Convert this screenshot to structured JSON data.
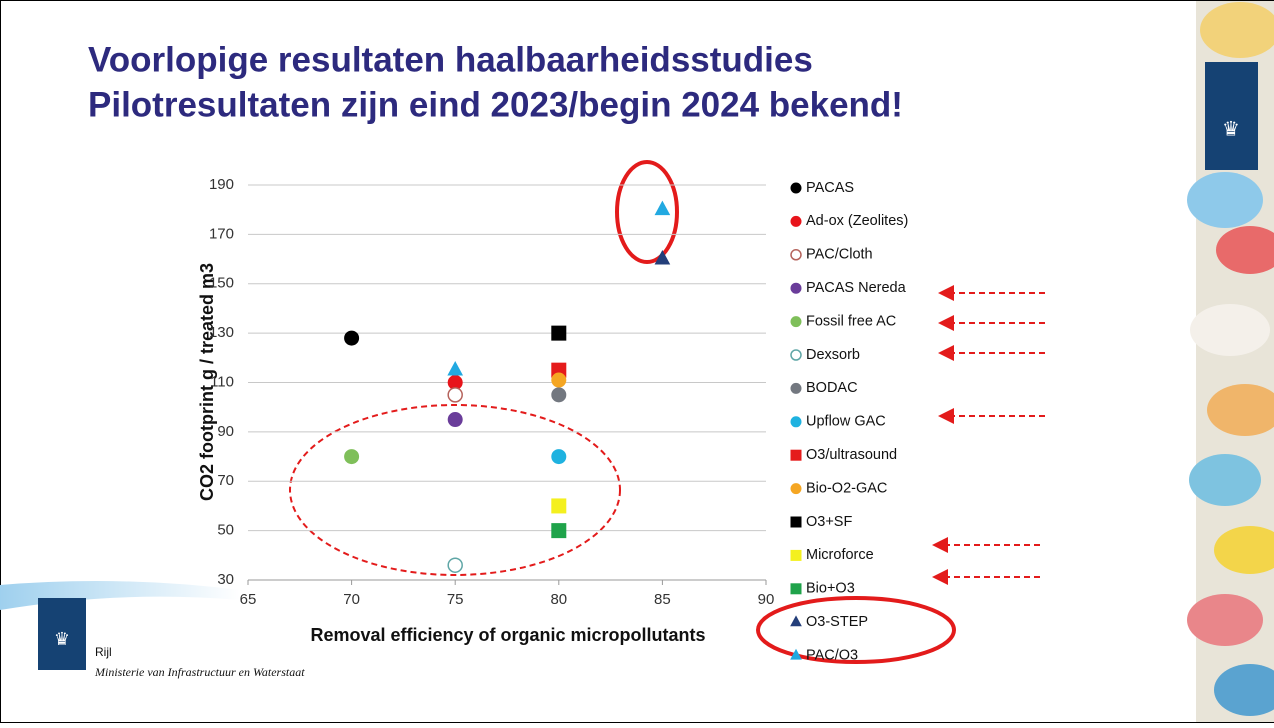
{
  "slide": {
    "title_lines": [
      "Voorlopige resultaten haalbaarheidsstudies",
      "Pilotresultaten zijn eind 2023/begin 2024 bekend!"
    ],
    "footer": {
      "logo_text": "Rijl",
      "ministry": "Ministerie van Infrastructuur en Waterstaat"
    }
  },
  "chart_data": {
    "type": "scatter",
    "x_label": "Removal efficiency of organic micropollutants",
    "y_label": "CO2 footprint g / treated m3",
    "xlim": [
      65,
      90
    ],
    "xticks": [
      65,
      70,
      75,
      80,
      85,
      90
    ],
    "ylim": [
      30,
      190
    ],
    "yticks": [
      30,
      50,
      70,
      90,
      110,
      130,
      150,
      170,
      190
    ],
    "grid": true,
    "legend": "right",
    "series": [
      {
        "name": "PACAS",
        "color": "#000000",
        "marker": "circle",
        "filled": true,
        "x": [
          70
        ],
        "values": [
          128
        ]
      },
      {
        "name": "Ad-ox (Zeolites)",
        "color": "#e8141b",
        "marker": "circle",
        "filled": true,
        "x": [
          75
        ],
        "values": [
          110
        ]
      },
      {
        "name": "PAC/Cloth",
        "color": "#b5635c",
        "marker": "circle",
        "filled": false,
        "x": [
          75
        ],
        "values": [
          105
        ]
      },
      {
        "name": "PACAS Nereda",
        "color": "#6a3d9a",
        "marker": "circle",
        "filled": true,
        "x": [
          75
        ],
        "values": [
          95
        ]
      },
      {
        "name": "Fossil free AC",
        "color": "#7fbf5a",
        "marker": "circle",
        "filled": true,
        "x": [
          70
        ],
        "values": [
          80
        ]
      },
      {
        "name": "Dexsorb",
        "color": "#5fa6a6",
        "marker": "circle",
        "filled": false,
        "x": [
          75
        ],
        "values": [
          36
        ]
      },
      {
        "name": "BODAC",
        "color": "#737880",
        "marker": "circle",
        "filled": true,
        "x": [
          80
        ],
        "values": [
          105
        ]
      },
      {
        "name": "Upflow GAC",
        "color": "#1fb2e0",
        "marker": "circle",
        "filled": true,
        "x": [
          80
        ],
        "values": [
          80
        ]
      },
      {
        "name": "O3/ultrasound",
        "color": "#e51b1b",
        "marker": "square",
        "filled": true,
        "x": [
          80
        ],
        "values": [
          115
        ]
      },
      {
        "name": "Bio-O2-GAC",
        "color": "#f5a623",
        "marker": "circle",
        "filled": true,
        "x": [
          80
        ],
        "values": [
          111
        ]
      },
      {
        "name": "O3+SF",
        "color": "#000000",
        "marker": "square",
        "filled": true,
        "x": [
          80
        ],
        "values": [
          130
        ]
      },
      {
        "name": "Microforce",
        "color": "#f4f01e",
        "marker": "square",
        "filled": true,
        "x": [
          80
        ],
        "values": [
          60
        ]
      },
      {
        "name": "Bio+O3",
        "color": "#1fa34a",
        "marker": "square",
        "filled": true,
        "x": [
          80
        ],
        "values": [
          50
        ]
      },
      {
        "name": "O3-STEP",
        "color": "#243f7a",
        "marker": "triangle",
        "filled": true,
        "x": [
          85
        ],
        "values": [
          160
        ]
      },
      {
        "name": "PAC/O3",
        "color": "#22a9e1",
        "marker": "triangle",
        "filled": true,
        "x": [
          75,
          85
        ],
        "values": [
          115,
          180
        ]
      }
    ]
  }
}
